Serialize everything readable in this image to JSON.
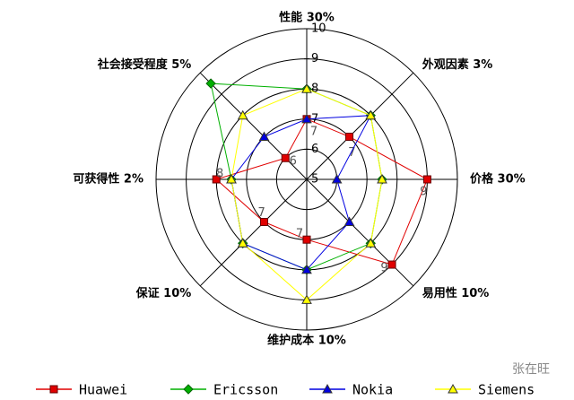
{
  "chart_data": {
    "type": "radar",
    "categories": [
      "性能 30%",
      "外观因素 3%",
      "价格 30%",
      "易用性 10%",
      "维护成本 10%",
      "保证 10%",
      "可获得性 2%",
      "社会接受程度 5%"
    ],
    "rlim": [
      5,
      10
    ],
    "rticks": [
      5,
      6,
      7,
      8,
      9,
      10
    ],
    "grid": true,
    "legend": "bottom",
    "series": [
      {
        "name": "Huawei",
        "color": "#e00000",
        "marker": "square",
        "show_labels": true,
        "values": [
          7,
          7,
          9,
          9,
          7,
          7,
          8,
          6
        ]
      },
      {
        "name": "Ericsson",
        "color": "#00b000",
        "marker": "diamond",
        "values": [
          8,
          8,
          7.5,
          8,
          8,
          8,
          7.5,
          9.5
        ]
      },
      {
        "name": "Nokia",
        "color": "#0000e0",
        "marker": "triangle",
        "values": [
          7,
          8,
          6,
          7,
          8,
          8,
          7.5,
          7
        ]
      },
      {
        "name": "Siemens",
        "color": "#ffff00",
        "marker": "triangle",
        "values": [
          8,
          8,
          7.5,
          8,
          9,
          8,
          7.5,
          8
        ]
      }
    ],
    "watermark": "张在旺"
  }
}
